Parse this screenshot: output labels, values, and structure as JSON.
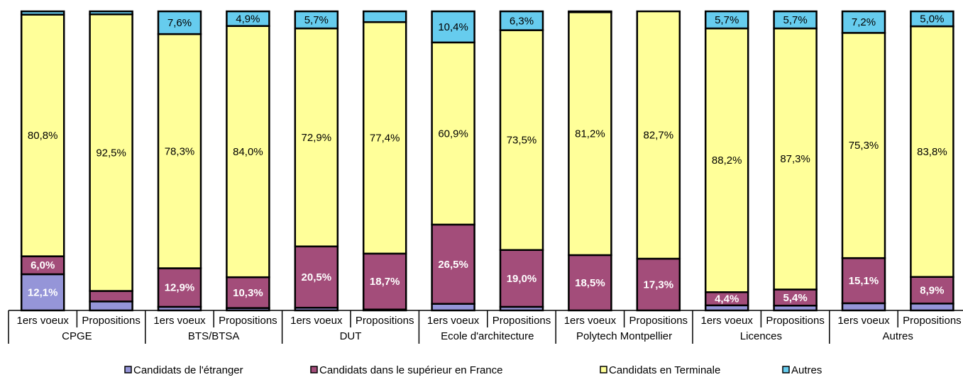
{
  "chart_data": {
    "type": "stacked_bar_100",
    "categories": [
      "1ers voeux",
      "Propositions",
      "1ers voeux",
      "Propositions",
      "1ers voeux",
      "Propositions",
      "1ers voeux",
      "Propositions",
      "1ers voeux",
      "Propositions",
      "1ers voeux",
      "Propositions",
      "1ers voeux",
      "Propositions"
    ],
    "groups": [
      "CPGE",
      "BTS/BTSA",
      "DUT",
      "Ecole d'architecture",
      "Polytech Montpellier",
      "Licences",
      "Autres"
    ],
    "series": [
      {
        "name": "Candidats de l'étranger",
        "color": "#9595d8",
        "values": [
          12.1,
          3,
          1.2,
          0.8,
          0.9,
          0.3,
          2.2,
          1.2,
          0,
          0,
          1.7,
          1.6,
          2.4,
          2.3
        ],
        "value_labels": [
          "12,1%",
          null,
          null,
          null,
          null,
          null,
          null,
          null,
          null,
          null,
          null,
          null,
          null,
          null
        ]
      },
      {
        "name": "Candidats dans le supérieur en France",
        "color": "#a34d7a",
        "values": [
          6.0,
          3.5,
          12.9,
          10.3,
          20.5,
          18.7,
          26.5,
          19.0,
          18.5,
          17.3,
          4.4,
          5.4,
          15.1,
          8.9
        ],
        "value_labels": [
          "6,0%",
          null,
          "12,9%",
          "10,3%",
          "20,5%",
          "18,7%",
          "26,5%",
          "19,0%",
          "18,5%",
          "17,3%",
          "4,4%",
          "5,4%",
          "15,1%",
          "8,9%"
        ]
      },
      {
        "name": "Candidats en Terminale",
        "color": "#ffff99",
        "values": [
          80.8,
          92.5,
          78.3,
          84.0,
          72.9,
          77.4,
          60.9,
          73.5,
          81.2,
          82.7,
          88.2,
          87.3,
          75.3,
          83.8
        ],
        "value_labels": [
          "80,8%",
          "92,5%",
          "78,3%",
          "84,0%",
          "72,9%",
          "77,4%",
          "60,9%",
          "73,5%",
          "81,2%",
          "82,7%",
          "88,2%",
          "87,3%",
          "75,3%",
          "83,8%"
        ]
      },
      {
        "name": "Autres",
        "color": "#66ccee",
        "values": [
          1.1,
          1.0,
          7.6,
          4.9,
          5.7,
          3.6,
          10.4,
          6.3,
          0.3,
          0,
          5.7,
          5.7,
          7.2,
          5.0
        ],
        "value_labels": [
          null,
          null,
          "7,6%",
          "4,9%",
          "5,7%",
          null,
          "10,4%",
          "6,3%",
          null,
          null,
          "5,7%",
          "5,7%",
          "7,2%",
          "5,0%"
        ]
      }
    ]
  }
}
